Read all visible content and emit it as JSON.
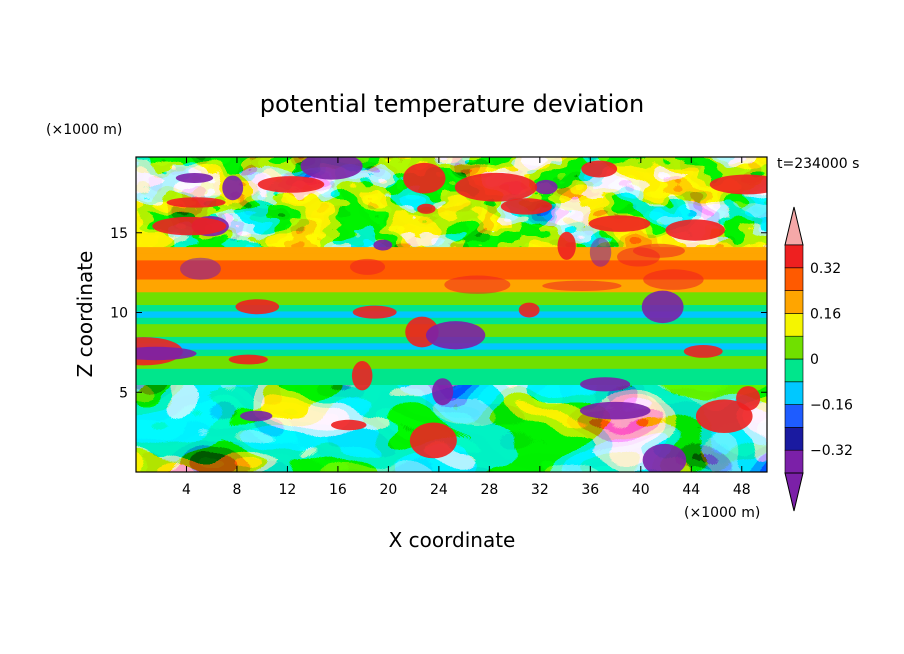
{
  "chart_data": {
    "type": "heatmap",
    "title": "potential temperature deviation",
    "xlabel": "X coordinate",
    "ylabel": "Z coordinate",
    "x_unit": "(×1000 m)",
    "y_unit": "(×1000 m)",
    "time_label": "t=234000 s",
    "xlim": [
      0,
      50
    ],
    "ylim": [
      0,
      19.75
    ],
    "x_ticks": [
      4,
      8,
      12,
      16,
      20,
      24,
      28,
      32,
      36,
      40,
      44,
      48
    ],
    "y_ticks": [
      5,
      10,
      15
    ],
    "colorbar": {
      "levels": [
        -0.4,
        -0.32,
        -0.24,
        -0.16,
        -0.08,
        0,
        0.08,
        0.16,
        0.24,
        0.32,
        0.4
      ],
      "tick_labels": [
        "0.32",
        "0.16",
        "0",
        "−0.16",
        "−0.32"
      ],
      "tick_values": [
        0.32,
        0.16,
        0,
        -0.16,
        -0.32
      ],
      "colors": [
        "#7b20a8",
        "#1a1aa0",
        "#1e5cff",
        "#00c8ff",
        "#00e68c",
        "#70e000",
        "#f5f500",
        "#ffa500",
        "#ff5a00",
        "#ee2020",
        "#f5a8a8"
      ],
      "extend": "both"
    },
    "regions": [
      {
        "shape": "band",
        "z_range": [
          0,
          5.5
        ],
        "value_range": [
          -0.4,
          0.32
        ],
        "pattern": "turbulent lower layer"
      },
      {
        "shape": "band",
        "z_range": [
          6.5,
          10.5
        ],
        "value_range": [
          -0.1,
          0.05
        ],
        "pattern": "stratified layers"
      },
      {
        "shape": "band",
        "z_range": [
          11,
          14
        ],
        "value_range": [
          0.16,
          0.32
        ],
        "pattern": "warm layer"
      },
      {
        "shape": "band",
        "z_range": [
          14,
          19.75
        ],
        "value_range": [
          -0.4,
          0.4
        ],
        "pattern": "mixed upper layer"
      }
    ]
  }
}
